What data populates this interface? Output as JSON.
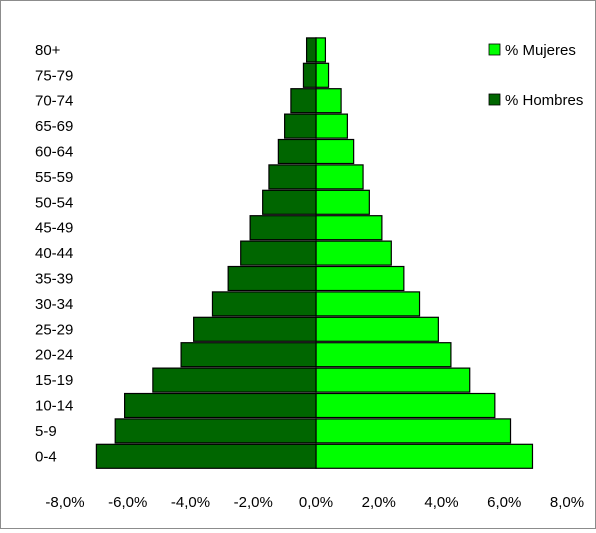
{
  "chart_data": {
    "type": "bar",
    "orientation": "horizontal",
    "categories": [
      "0-4",
      "5-9",
      "10-14",
      "15-19",
      "20-24",
      "25-29",
      "30-34",
      "35-39",
      "40-44",
      "45-49",
      "50-54",
      "55-59",
      "60-64",
      "65-69",
      "70-74",
      "75-79",
      "80+"
    ],
    "series": [
      {
        "name": "% Mujeres",
        "color": "#00ff00",
        "values": [
          6.9,
          6.2,
          5.7,
          4.9,
          4.3,
          3.9,
          3.3,
          2.8,
          2.4,
          2.1,
          1.7,
          1.5,
          1.2,
          1.0,
          0.8,
          0.4,
          0.3
        ]
      },
      {
        "name": "% Hombres",
        "color": "#006600",
        "values": [
          -7.0,
          -6.4,
          -6.1,
          -5.2,
          -4.3,
          -3.9,
          -3.3,
          -2.8,
          -2.4,
          -2.1,
          -1.7,
          -1.5,
          -1.2,
          -1.0,
          -0.8,
          -0.4,
          -0.3
        ]
      }
    ],
    "x_ticks": [
      "-8,0%",
      "-6,0%",
      "-4,0%",
      "-2,0%",
      "0,0%",
      "2,0%",
      "4,0%",
      "6,0%",
      "8,0%"
    ],
    "xlim": [
      -8,
      8
    ],
    "title": "",
    "xlabel": "",
    "ylabel": "",
    "grid": false,
    "legend_position": "top-right"
  }
}
